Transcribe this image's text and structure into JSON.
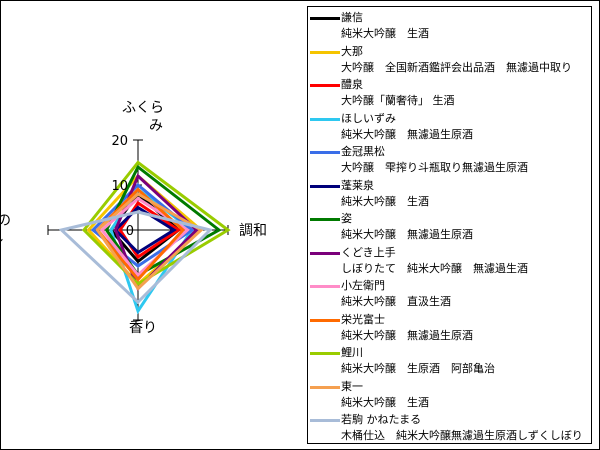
{
  "chart_data": {
    "type": "radar",
    "title": "",
    "axes": [
      "ふくらみ",
      "調和",
      "香り",
      "後味のキレ"
    ],
    "axis_label_lines": [
      [
        "ふくら",
        "み"
      ],
      [
        "調和"
      ],
      [
        "香り"
      ],
      [
        "後味の",
        "キレ"
      ]
    ],
    "rlim": [
      0,
      20
    ],
    "ticks": [
      "0",
      "10",
      "20"
    ],
    "legend_position": "right",
    "series": [
      {
        "name": "謙信",
        "subtitle": "純米大吟醸　生酒",
        "color": "#000000",
        "values": [
          8,
          9,
          7,
          6
        ]
      },
      {
        "name": "大那",
        "subtitle": "大吟醸　全国新酒鑑評会出品酒　無濾過中取り",
        "color": "#f5c400",
        "values": [
          12,
          14,
          12,
          11
        ]
      },
      {
        "name": "醴泉",
        "subtitle": "大吟醸「蘭奢待」 生酒",
        "color": "#ff0000",
        "values": [
          6,
          9,
          6,
          4
        ]
      },
      {
        "name": "ほしいずみ",
        "subtitle": "純米大吟醸　無濾過生原酒",
        "color": "#2ec8f0",
        "values": [
          9,
          12,
          18,
          6
        ]
      },
      {
        "name": "金冠黒松",
        "subtitle": "大吟醸　雫搾り斗瓶取り無濾過生原酒",
        "color": "#3a6ee8",
        "values": [
          10,
          12,
          8,
          10
        ]
      },
      {
        "name": "蓬莱泉",
        "subtitle": "純米大吟醸　生酒",
        "color": "#00007a",
        "values": [
          5,
          8,
          5,
          5
        ]
      },
      {
        "name": "姿",
        "subtitle": "純米大吟醸　無濾過生原酒",
        "color": "#007a00",
        "values": [
          14,
          18,
          10,
          7
        ]
      },
      {
        "name": "くどき上手",
        "subtitle": "しぼりたて　純米大吟醸　無濾過生酒",
        "color": "#7a007a",
        "values": [
          12,
          13,
          13,
          5
        ]
      },
      {
        "name": "小左衛門",
        "subtitle": "純米大吟醸　直汲生酒",
        "color": "#ff8cc8",
        "values": [
          7,
          11,
          10,
          8
        ]
      },
      {
        "name": "栄光富士",
        "subtitle": "純米大吟醸　無濾過生原酒",
        "color": "#ff6a00",
        "values": [
          9,
          10,
          11,
          9
        ]
      },
      {
        "name": "鯉川",
        "subtitle": "純米大吟醸　生原酒　阿部亀治",
        "color": "#99cc00",
        "values": [
          15,
          20,
          12,
          12
        ]
      },
      {
        "name": "東一",
        "subtitle": "純米大吟醸　生酒",
        "color": "#f5a050",
        "values": [
          8,
          14,
          13,
          9
        ]
      },
      {
        "name": "若駒 かねたまる",
        "subtitle": "木桶仕込　純米大吟醸無濾過生原酒しずくしぼり",
        "color": "#a8bcd8",
        "values": [
          4,
          16,
          16,
          17
        ]
      }
    ]
  }
}
